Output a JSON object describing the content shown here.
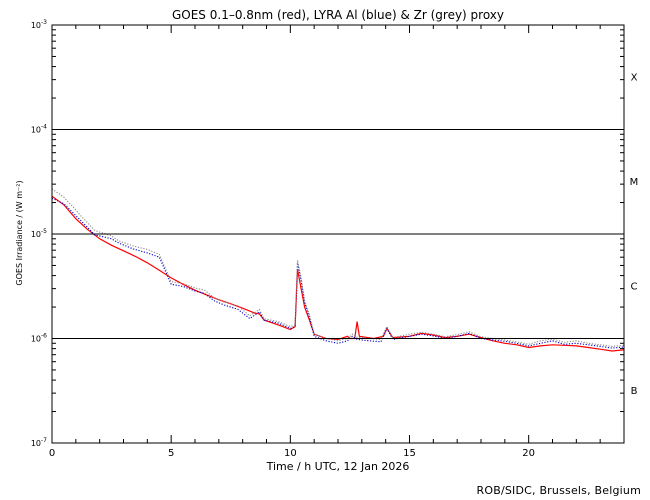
{
  "chart_data": {
    "type": "line",
    "title": "GOES 0.1–0.8nm (red), LYRA Al (blue) & Zr (grey) proxy",
    "xlabel": "Time / h UTC, 12 Jan 2026",
    "ylabel": "GOES Irradiance / (W m⁻²)",
    "y_scale": "log",
    "xlim": [
      0,
      24
    ],
    "ylim": [
      1e-07,
      0.001
    ],
    "x_ticks": [
      0,
      5,
      10,
      15,
      20
    ],
    "x_tick_labels": [
      "0",
      "5",
      "10",
      "15",
      "20"
    ],
    "y_ticks": [
      1e-07,
      1e-06,
      1e-05,
      0.0001,
      0.001
    ],
    "y_tick_labels": [
      {
        "base": "10",
        "exp": "-7"
      },
      {
        "base": "10",
        "exp": "-6"
      },
      {
        "base": "10",
        "exp": "-5"
      },
      {
        "base": "10",
        "exp": "-4"
      },
      {
        "base": "10",
        "exp": "-3"
      }
    ],
    "class_thresholds": [
      1e-06,
      1e-05,
      0.0001
    ],
    "flare_classes": [
      {
        "label": "X",
        "y": 0.00032
      },
      {
        "label": "M",
        "y": 3.2e-05
      },
      {
        "label": "C",
        "y": 3.2e-06
      },
      {
        "label": "B",
        "y": 3.2e-07
      }
    ],
    "series": [
      {
        "color": "#ff0000",
        "style": "solid",
        "points": [
          [
            0,
            2.3e-05
          ],
          [
            0.5,
            1.9e-05
          ],
          [
            1,
            1.4e-05
          ],
          [
            1.5,
            1.1e-05
          ],
          [
            2,
            9e-06
          ],
          [
            2.5,
            7.8e-06
          ],
          [
            3,
            6.9e-06
          ],
          [
            3.5,
            6.1e-06
          ],
          [
            4,
            5.3e-06
          ],
          [
            4.5,
            4.5e-06
          ],
          [
            5,
            3.8e-06
          ],
          [
            5.5,
            3.3e-06
          ],
          [
            6,
            2.9e-06
          ],
          [
            6.5,
            2.6e-06
          ],
          [
            7,
            2.35e-06
          ],
          [
            7.5,
            2.15e-06
          ],
          [
            8,
            1.95e-06
          ],
          [
            8.5,
            1.75e-06
          ],
          [
            8.7,
            1.72e-06
          ],
          [
            8.9,
            1.5e-06
          ],
          [
            9.5,
            1.35e-06
          ],
          [
            10,
            1.22e-06
          ],
          [
            10.2,
            1.3e-06
          ],
          [
            10.3,
            4.6e-06
          ],
          [
            10.45,
            3e-06
          ],
          [
            10.6,
            2e-06
          ],
          [
            10.8,
            1.5e-06
          ],
          [
            11,
            1.1e-06
          ],
          [
            11.5,
            1e-06
          ],
          [
            12,
            9.8e-07
          ],
          [
            12.4,
            1.05e-06
          ],
          [
            12.5,
            1e-06
          ],
          [
            12.7,
            1e-06
          ],
          [
            12.8,
            1.45e-06
          ],
          [
            12.9,
            1.05e-06
          ],
          [
            13.5,
            1e-06
          ],
          [
            13.9,
            1.05e-06
          ],
          [
            14.05,
            1.25e-06
          ],
          [
            14.3,
            1.02e-06
          ],
          [
            15,
            1.05e-06
          ],
          [
            15.5,
            1.12e-06
          ],
          [
            16,
            1.08e-06
          ],
          [
            16.5,
            1.02e-06
          ],
          [
            17,
            1.05e-06
          ],
          [
            17.5,
            1.1e-06
          ],
          [
            18,
            1.02e-06
          ],
          [
            18.5,
            9.5e-07
          ],
          [
            19,
            9e-07
          ],
          [
            19.5,
            8.7e-07
          ],
          [
            20,
            8.2e-07
          ],
          [
            20.5,
            8.5e-07
          ],
          [
            21,
            8.7e-07
          ],
          [
            21.5,
            8.6e-07
          ],
          [
            22,
            8.5e-07
          ],
          [
            22.5,
            8.2e-07
          ],
          [
            23,
            7.9e-07
          ],
          [
            23.5,
            7.6e-07
          ],
          [
            24,
            7.8e-07
          ]
        ]
      },
      {
        "color": "#0000cc",
        "style": "dotted",
        "points": [
          [
            0,
            2.2e-05
          ],
          [
            0.5,
            1.95e-05
          ],
          [
            1,
            1.5e-05
          ],
          [
            1.2,
            1.35e-05
          ],
          [
            1.8,
            9.8e-06
          ],
          [
            2.5,
            9e-06
          ],
          [
            2.8,
            8.2e-06
          ],
          [
            3.4,
            7.2e-06
          ],
          [
            4,
            6.6e-06
          ],
          [
            4.5,
            6e-06
          ],
          [
            5,
            3.3e-06
          ],
          [
            5.5,
            3.15e-06
          ],
          [
            6,
            2.85e-06
          ],
          [
            6.4,
            2.7e-06
          ],
          [
            6.8,
            2.3e-06
          ],
          [
            7.2,
            2.1e-06
          ],
          [
            7.8,
            1.9e-06
          ],
          [
            8.3,
            1.55e-06
          ],
          [
            8.7,
            1.8e-06
          ],
          [
            8.9,
            1.5e-06
          ],
          [
            9.5,
            1.4e-06
          ],
          [
            10,
            1.25e-06
          ],
          [
            10.2,
            1.3e-06
          ],
          [
            10.3,
            5.3e-06
          ],
          [
            10.45,
            3.6e-06
          ],
          [
            10.6,
            2.2e-06
          ],
          [
            10.8,
            1.6e-06
          ],
          [
            11,
            1.05e-06
          ],
          [
            11.5,
            9.5e-07
          ],
          [
            12,
            9e-07
          ],
          [
            12.4,
            9.5e-07
          ],
          [
            12.6,
            1.05e-06
          ],
          [
            12.8,
            9.8e-07
          ],
          [
            13.3,
            9.5e-07
          ],
          [
            13.8,
            9.3e-07
          ],
          [
            14.05,
            1.25e-06
          ],
          [
            14.3,
            9.8e-07
          ],
          [
            15,
            1.05e-06
          ],
          [
            15.5,
            1.1e-06
          ],
          [
            16,
            1.06e-06
          ],
          [
            16.5,
            1e-06
          ],
          [
            17,
            1.05e-06
          ],
          [
            17.5,
            1.12e-06
          ],
          [
            18,
            1e-06
          ],
          [
            18.5,
            9.7e-07
          ],
          [
            19,
            9.4e-07
          ],
          [
            19.5,
            9e-07
          ],
          [
            20,
            8.5e-07
          ],
          [
            20.5,
            9e-07
          ],
          [
            21,
            9.5e-07
          ],
          [
            21.5,
            8.8e-07
          ],
          [
            22,
            9e-07
          ],
          [
            22.5,
            8.7e-07
          ],
          [
            23,
            8.4e-07
          ],
          [
            23.5,
            8.1e-07
          ],
          [
            24,
            8.3e-07
          ]
        ]
      },
      {
        "color": "#888888",
        "style": "dotted",
        "points": [
          [
            0,
            2.7e-05
          ],
          [
            0.5,
            2.25e-05
          ],
          [
            1,
            1.7e-05
          ],
          [
            1.2,
            1.5e-05
          ],
          [
            1.8,
            1.08e-05
          ],
          [
            2.5,
            9.6e-06
          ],
          [
            2.8,
            8.6e-06
          ],
          [
            3.4,
            7.7e-06
          ],
          [
            4,
            7.1e-06
          ],
          [
            4.5,
            6.4e-06
          ],
          [
            5,
            3.5e-06
          ],
          [
            5.5,
            3.35e-06
          ],
          [
            6,
            3.05e-06
          ],
          [
            6.4,
            2.9e-06
          ],
          [
            6.8,
            2.45e-06
          ],
          [
            7.2,
            2.25e-06
          ],
          [
            7.8,
            2.05e-06
          ],
          [
            8.3,
            1.65e-06
          ],
          [
            8.7,
            1.9e-06
          ],
          [
            8.9,
            1.55e-06
          ],
          [
            9.5,
            1.45e-06
          ],
          [
            10,
            1.3e-06
          ],
          [
            10.2,
            1.35e-06
          ],
          [
            10.3,
            5.6e-06
          ],
          [
            10.45,
            3.8e-06
          ],
          [
            10.6,
            2.3e-06
          ],
          [
            10.8,
            1.7e-06
          ],
          [
            11,
            1.1e-06
          ],
          [
            11.5,
            1e-06
          ],
          [
            12,
            9.5e-07
          ],
          [
            12.4,
            1e-06
          ],
          [
            12.6,
            1.1e-06
          ],
          [
            12.8,
            1.03e-06
          ],
          [
            13.3,
            1e-06
          ],
          [
            13.8,
            9.8e-07
          ],
          [
            14.05,
            1.3e-06
          ],
          [
            14.3,
            1.02e-06
          ],
          [
            15,
            1.1e-06
          ],
          [
            15.5,
            1.15e-06
          ],
          [
            16,
            1.1e-06
          ],
          [
            16.5,
            1.04e-06
          ],
          [
            17,
            1.09e-06
          ],
          [
            17.5,
            1.16e-06
          ],
          [
            18,
            1.04e-06
          ],
          [
            18.5,
            1e-06
          ],
          [
            19,
            9.7e-07
          ],
          [
            19.5,
            9.3e-07
          ],
          [
            20,
            8.8e-07
          ],
          [
            20.5,
            9.5e-07
          ],
          [
            21,
            9.9e-07
          ],
          [
            21.5,
            9.2e-07
          ],
          [
            22,
            9.5e-07
          ],
          [
            22.5,
            9e-07
          ],
          [
            23,
            8.7e-07
          ],
          [
            23.5,
            8.4e-07
          ],
          [
            24,
            8.6e-07
          ]
        ]
      }
    ]
  },
  "footer": {
    "credit": "ROB/SIDC, Brussels, Belgium"
  }
}
